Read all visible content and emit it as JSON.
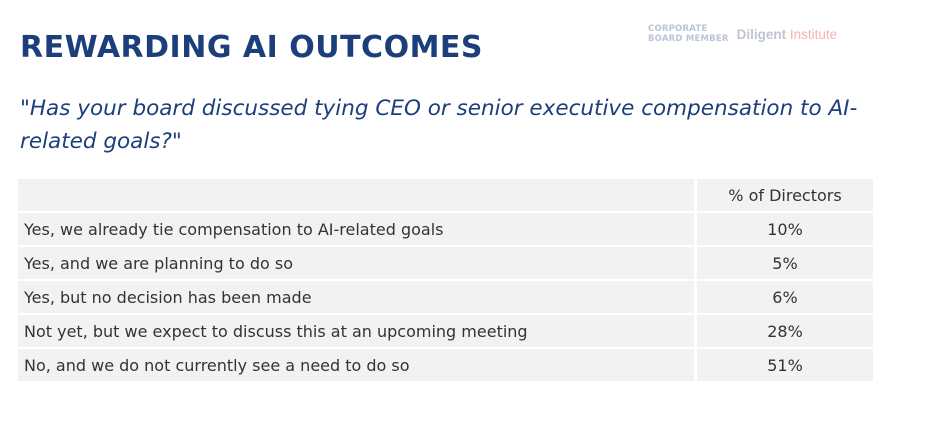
{
  "header": {
    "title": "REWARDING AI OUTCOMES",
    "subtitle": "\"Has your board discussed tying CEO or senior executive compensation to AI-related goals?\""
  },
  "logos": {
    "cbm_line1": "CORPORATE",
    "cbm_line2": "BOARD MEMBER",
    "diligent": "Diligent",
    "institute": "Institute"
  },
  "colors": {
    "title": "#1c3f7c",
    "row_background": "#f2f2f2",
    "text": "#333333"
  },
  "chart_data": {
    "type": "table",
    "column_header": "% of Directors",
    "rows": [
      {
        "label": "Yes, we already tie compensation to AI-related goals",
        "value": "10%"
      },
      {
        "label": "Yes, and we are planning to do so",
        "value": "5%"
      },
      {
        "label": "Yes, but no decision has been made",
        "value": "6%"
      },
      {
        "label": "Not yet, but we expect to discuss this at an upcoming meeting",
        "value": "28%"
      },
      {
        "label": "No, and we do not currently see a need to do so",
        "value": "51%"
      }
    ]
  }
}
